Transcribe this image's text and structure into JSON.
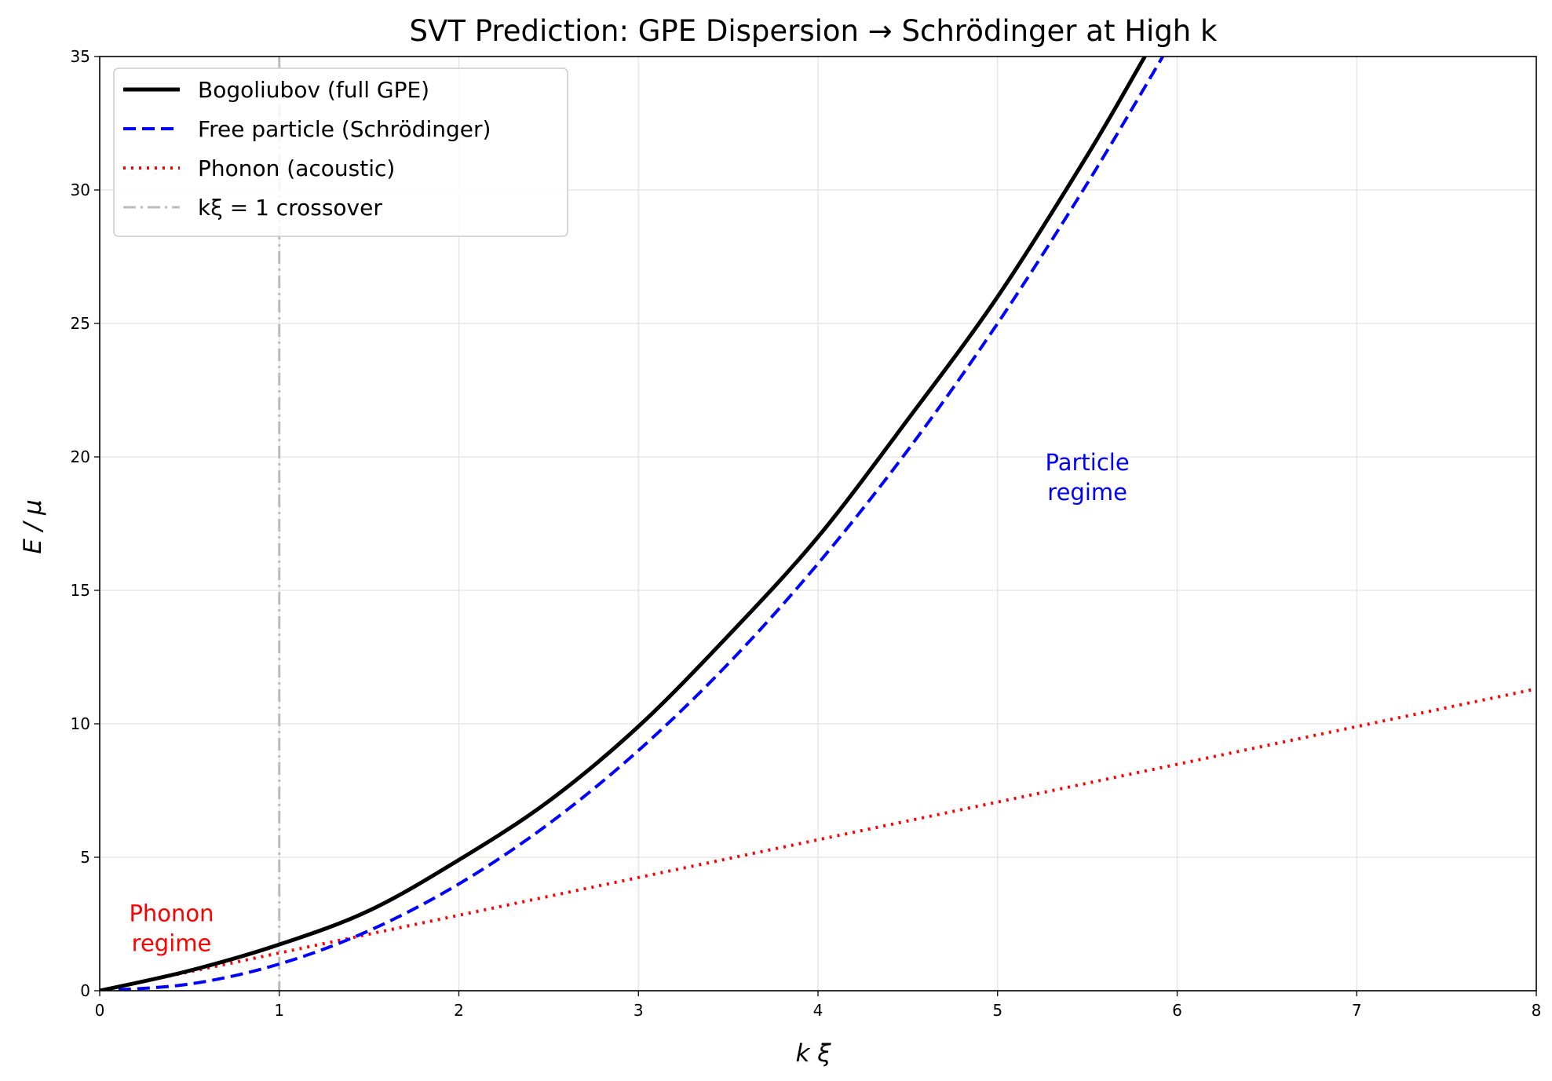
{
  "chart_data": {
    "type": "line",
    "title": "SVT Prediction: GPE Dispersion → Schrödinger at High k",
    "xlabel": "k ξ",
    "ylabel": "E / μ",
    "xlim": [
      0,
      8
    ],
    "ylim": [
      0,
      35
    ],
    "xticks": [
      "0",
      "1",
      "2",
      "3",
      "4",
      "5",
      "6",
      "7",
      "8"
    ],
    "yticks": [
      "0",
      "5",
      "10",
      "15",
      "20",
      "25",
      "30",
      "35"
    ],
    "grid": true,
    "legend_position": "top-left",
    "series": [
      {
        "name": "Bogoliubov  (full GPE)",
        "color": "#000000",
        "style": "solid",
        "x": [
          0,
          0.5,
          1,
          1.5,
          2,
          2.5,
          3,
          3.5,
          4,
          4.5,
          5,
          5.5,
          5.82
        ],
        "y": [
          0,
          0.75,
          1.73,
          3.0,
          4.9,
          7.1,
          9.9,
          13.3,
          17.0,
          21.4,
          26.0,
          31.3,
          35.0
        ]
      },
      {
        "name": "Free particle  (Schrödinger)",
        "color": "#0000ff",
        "style": "dashed",
        "x": [
          0,
          0.5,
          1,
          1.5,
          2,
          2.5,
          3,
          3.5,
          4,
          4.5,
          5,
          5.5,
          5.92
        ],
        "y": [
          0,
          0.25,
          1.0,
          2.25,
          4.0,
          6.25,
          9.0,
          12.25,
          16.0,
          20.25,
          25.0,
          30.25,
          35.0
        ]
      },
      {
        "name": "Phonon  (acoustic)",
        "color": "#ff0000",
        "style": "dotted",
        "x": [
          0,
          8
        ],
        "y": [
          0,
          11.31
        ]
      }
    ],
    "vline": {
      "x": 1,
      "name": "kξ = 1 crossover",
      "color": "#bbbbbb",
      "style": "dashdot"
    },
    "annotations": [
      {
        "lines": [
          "Phonon",
          "regime"
        ],
        "x": 0.4,
        "y": 2.1,
        "color": "#ff0000"
      },
      {
        "lines": [
          "Particle",
          "regime"
        ],
        "x": 5.5,
        "y": 19.0,
        "color": "#0000ff"
      }
    ]
  }
}
